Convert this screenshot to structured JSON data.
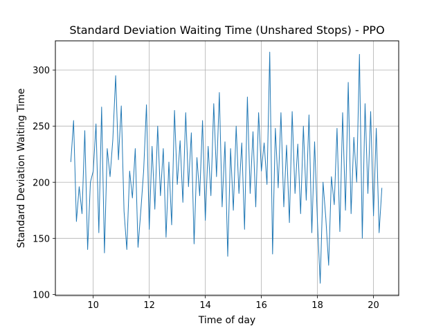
{
  "chart_data": {
    "type": "line",
    "title": "Standard Deviation Waiting Time (Unshared Stops) - PPO",
    "xlabel": "Time of day",
    "ylabel": "Standard Deviation Waiting Time",
    "xlim": [
      8.65,
      20.9
    ],
    "ylim": [
      99,
      326
    ],
    "xticks": [
      10,
      12,
      14,
      16,
      18,
      20
    ],
    "xtick_labels": [
      "10",
      "12",
      "14",
      "16",
      "18",
      "20"
    ],
    "yticks": [
      100,
      150,
      200,
      250,
      300
    ],
    "ytick_labels": [
      "100",
      "150",
      "200",
      "250",
      "300"
    ],
    "grid": true,
    "legend": "none",
    "series": [
      {
        "color": "#1f77b4",
        "x": [
          9.2,
          9.3,
          9.4,
          9.5,
          9.6,
          9.7,
          9.8,
          9.9,
          10.0,
          10.1,
          10.2,
          10.3,
          10.4,
          10.5,
          10.6,
          10.7,
          10.8,
          10.9,
          11.0,
          11.1,
          11.2,
          11.3,
          11.4,
          11.5,
          11.6,
          11.7,
          11.8,
          11.9,
          12.0,
          12.1,
          12.2,
          12.3,
          12.4,
          12.5,
          12.6,
          12.7,
          12.8,
          12.9,
          13.0,
          13.1,
          13.2,
          13.3,
          13.4,
          13.5,
          13.6,
          13.7,
          13.8,
          13.9,
          14.0,
          14.1,
          14.2,
          14.3,
          14.4,
          14.5,
          14.6,
          14.7,
          14.8,
          14.9,
          15.0,
          15.1,
          15.2,
          15.3,
          15.4,
          15.5,
          15.6,
          15.7,
          15.8,
          15.9,
          16.0,
          16.1,
          16.2,
          16.3,
          16.4,
          16.5,
          16.6,
          16.7,
          16.8,
          16.9,
          17.0,
          17.1,
          17.2,
          17.3,
          17.4,
          17.5,
          17.6,
          17.7,
          17.8,
          17.9,
          18.0,
          18.1,
          18.2,
          18.3,
          18.4,
          18.5,
          18.6,
          18.7,
          18.8,
          18.9,
          19.0,
          19.1,
          19.2,
          19.3,
          19.4,
          19.5,
          19.6,
          19.7,
          19.8,
          19.9,
          20.0,
          20.1,
          20.2,
          20.3
        ],
        "values": [
          218,
          255,
          165,
          196,
          172,
          246,
          140,
          200,
          210,
          252,
          155,
          267,
          137,
          230,
          205,
          238,
          295,
          220,
          268,
          174,
          140,
          210,
          186,
          230,
          142,
          175,
          210,
          269,
          158,
          232,
          176,
          250,
          188,
          230,
          151,
          218,
          162,
          264,
          198,
          237,
          182,
          262,
          196,
          244,
          145,
          222,
          188,
          255,
          166,
          232,
          188,
          270,
          205,
          280,
          178,
          236,
          134,
          230,
          175,
          250,
          190,
          235,
          158,
          276,
          190,
          245,
          178,
          262,
          210,
          235,
          198,
          316,
          136,
          248,
          195,
          262,
          178,
          233,
          164,
          263,
          190,
          234,
          172,
          250,
          184,
          260,
          155,
          236,
          165,
          110,
          200,
          168,
          126,
          205,
          180,
          248,
          156,
          262,
          175,
          289,
          172,
          240,
          200,
          314,
          150,
          270,
          190,
          263,
          170,
          248,
          155,
          195
        ]
      }
    ]
  }
}
